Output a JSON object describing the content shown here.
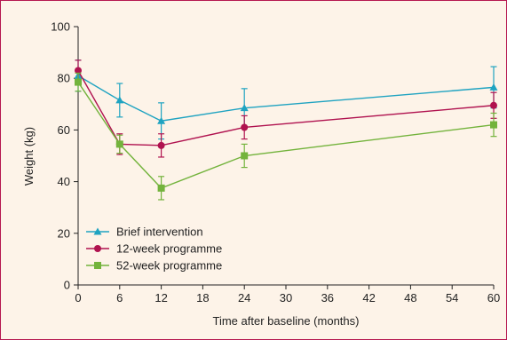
{
  "chart_data": {
    "type": "line",
    "xlabel": "Time after baseline (months)",
    "ylabel": "Weight (kg)",
    "xlim": [
      0,
      60
    ],
    "ylim": [
      0,
      100
    ],
    "x_ticks": [
      0,
      6,
      12,
      18,
      24,
      30,
      36,
      42,
      48,
      54,
      60
    ],
    "y_ticks": [
      0,
      20,
      40,
      60,
      80,
      100
    ],
    "grid": false,
    "legend_position": "bottom-left",
    "series": [
      {
        "name": "Brief intervention",
        "color": "#1fa3c1",
        "marker": "triangle",
        "points": [
          {
            "x": 0,
            "y": 81,
            "err": 6
          },
          {
            "x": 6,
            "y": 71.5,
            "err": 6.5
          },
          {
            "x": 12,
            "y": 63.5,
            "err": 7
          },
          {
            "x": 24,
            "y": 68.5,
            "err": 7.5
          },
          {
            "x": 60,
            "y": 76.5,
            "err": 8
          }
        ]
      },
      {
        "name": "12-week programme",
        "color": "#b0124f",
        "marker": "circle",
        "points": [
          {
            "x": 0,
            "y": 83,
            "err": 4
          },
          {
            "x": 6,
            "y": 54.5,
            "err": 4
          },
          {
            "x": 12,
            "y": 54,
            "err": 4.5
          },
          {
            "x": 24,
            "y": 61,
            "err": 4.5
          },
          {
            "x": 60,
            "y": 69.5,
            "err": 5
          }
        ]
      },
      {
        "name": "52-week programme",
        "color": "#73b33c",
        "marker": "square",
        "points": [
          {
            "x": 0,
            "y": 78.5,
            "err": 3.5
          },
          {
            "x": 6,
            "y": 54.5,
            "err": 3.5
          },
          {
            "x": 12,
            "y": 37.5,
            "err": 4.5
          },
          {
            "x": 24,
            "y": 50,
            "err": 4.5
          },
          {
            "x": 60,
            "y": 62,
            "err": 4.5
          }
        ]
      }
    ]
  }
}
